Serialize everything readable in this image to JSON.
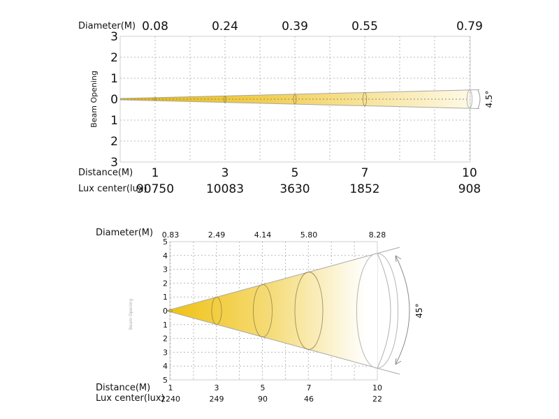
{
  "chart_data": [
    {
      "type": "beam-diagram",
      "title": "",
      "beam_angle_label": "4.5°",
      "beam_angle_deg": 4.5,
      "diameter_label": "Diameter(M)",
      "distance_label": "Distance(M)",
      "lux_label": "Lux center(lux)",
      "ylabel": "Beam Opening",
      "y_ticks": [
        "3",
        "2",
        "1",
        "0",
        "1",
        "2",
        "3"
      ],
      "ylim": [
        -3,
        3
      ],
      "distances": [
        1,
        3,
        5,
        7,
        10
      ],
      "diameters": [
        "0.08",
        "0.24",
        "0.39",
        "0.55",
        "0.79"
      ],
      "lux_center": [
        90750,
        10083,
        3630,
        1852,
        908
      ],
      "grid": true
    },
    {
      "type": "beam-diagram",
      "title": "",
      "beam_angle_label": "45°",
      "beam_angle_deg": 45,
      "diameter_label": "Diameter(M)",
      "distance_label": "Distance(M)",
      "lux_label": "Lux center(lux)",
      "ylabel": "Beam Opening",
      "y_ticks": [
        "5",
        "4",
        "3",
        "2",
        "1",
        "0",
        "1",
        "2",
        "3",
        "4",
        "5"
      ],
      "ylim": [
        -5,
        5
      ],
      "distances": [
        1,
        3,
        5,
        7,
        10
      ],
      "diameters": [
        "0.83",
        "2.49",
        "4.14",
        "5.80",
        "8.28"
      ],
      "lux_center": [
        2240,
        249,
        90,
        46,
        22
      ],
      "grid": true
    }
  ],
  "colors": {
    "beam_start": "#f2c318",
    "beam_end": "#ffffff",
    "grid": "#b8b8b8"
  }
}
